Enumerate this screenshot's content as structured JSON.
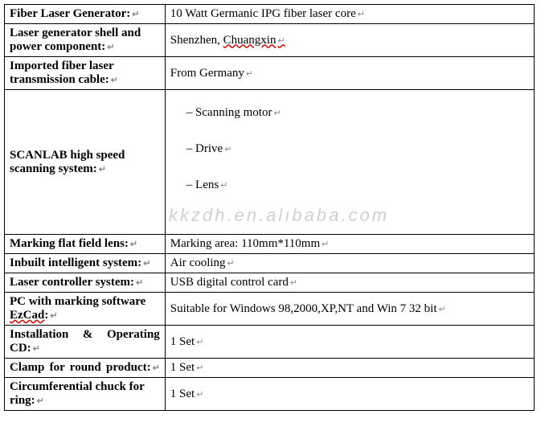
{
  "watermark": "kkzdh.en.alıbaba.com",
  "rows": [
    {
      "label": "Fiber Laser Generator:",
      "value": "10 Watt Germanic IPG fiber laser core",
      "multiline_label": false
    },
    {
      "label": "Laser generator shell and power component:",
      "value_pre": "Shenzhen, ",
      "value_squiggle": "Chuangxin",
      "multiline_label": true
    },
    {
      "label": "Imported fiber laser transmission cable:",
      "value": "From Germany",
      "multiline_label": true
    },
    {
      "label": "SCANLAB high speed scanning system:",
      "scan_items": [
        "– Scanning motor",
        "– Drive",
        "– Lens"
      ],
      "multiline_label": true
    },
    {
      "label": "Marking flat field lens:",
      "value": "Marking area: 110mm*110mm",
      "multiline_label": false
    },
    {
      "label": "Inbuilt intelligent system:",
      "value": "Air cooling",
      "multiline_label": true
    },
    {
      "label": "Laser controller system:",
      "value": "USB digital control card",
      "multiline_label": true
    },
    {
      "label": "PC with marking software ",
      "label_squiggle": "EzCad",
      "label_post": ":",
      "value": "Suitable for Windows 98,2000,XP,NT and Win 7 32 bit",
      "multiline_label": true
    },
    {
      "label": "Installation & Operating CD:",
      "value": "1 Set",
      "justify": true
    },
    {
      "label": "Clamp for round product:",
      "value": "1 Set",
      "justify": true
    },
    {
      "label": "Circumferential chuck for ring:",
      "value": "1 Set",
      "multiline_label": true
    }
  ]
}
